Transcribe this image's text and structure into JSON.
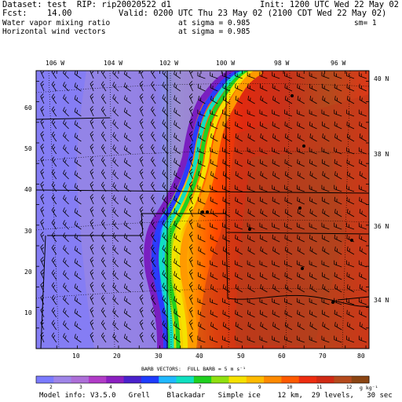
{
  "header": {
    "line1_left": "Dataset: test  RIP: rip20020522 d1",
    "line1_right": "Init: 1200 UTC Wed 22 May 02",
    "line2_left": "Fcst:    14.00",
    "line2_right": "Valid: 0200 UTC Thu 23 May 02 (2100 CDT Wed 22 May 02)",
    "line3_left": "Water vapor mixing ratio",
    "line3_mid": "at sigma = 0.985",
    "line3_right": "sm= 1",
    "line4_left": "Horizontal wind vectors",
    "line4_mid": "at sigma = 0.985"
  },
  "map": {
    "top_lon_labels": [
      "106 W",
      "104 W",
      "102 W",
      "100 W",
      "98 W",
      "96 W"
    ],
    "right_lat_labels": [
      "40 N",
      "38 N",
      "36 N",
      "34 N"
    ],
    "left_axis_labels": [
      "60",
      "50",
      "40",
      "30",
      "20",
      "10"
    ],
    "bottom_axis_labels": [
      "10",
      "20",
      "30",
      "40",
      "50",
      "60",
      "70",
      "80"
    ],
    "moisture_field": {
      "dry_values": "purple/blue in west",
      "dryline": "sharp gradient near x 30-35",
      "moist_values": "red/brown in east"
    }
  },
  "barb_caption": "BARB VECTORS:  FULL BARB = 5 m s⁻¹",
  "colorbar": {
    "labels": [
      "2",
      "3",
      "4",
      "5",
      "6",
      "7",
      "8",
      "9",
      "10",
      "11",
      "12"
    ],
    "units": "g kg⁻¹",
    "colors": [
      "#7b7bff",
      "#9f85e8",
      "#ad6fd8",
      "#b13cc7",
      "#8b1fc0",
      "#4a22cc",
      "#1e3cff",
      "#20b8ff",
      "#10e0c0",
      "#20d020",
      "#90e010",
      "#f5e100",
      "#ffba00",
      "#ff8a00",
      "#ff5a00",
      "#ee2d10",
      "#d02a14",
      "#b54a1c",
      "#8b4513"
    ]
  },
  "footer": "Model info: V3.5.0   Grell    Blackadar   Simple ice    12 km,  29 levels,   30 sec"
}
